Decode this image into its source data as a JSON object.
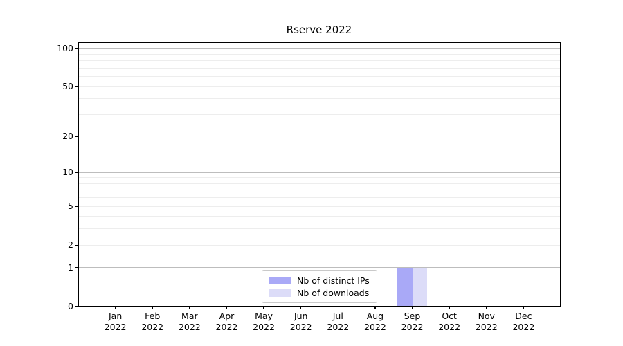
{
  "chart_data": {
    "type": "bar",
    "title": "Rserve 2022",
    "categories": [
      "Jan 2022",
      "Feb 2022",
      "Mar 2022",
      "Apr 2022",
      "May 2022",
      "Jun 2022",
      "Jul 2022",
      "Aug 2022",
      "Sep 2022",
      "Oct 2022",
      "Nov 2022",
      "Dec 2022"
    ],
    "series": [
      {
        "name": "Nb of distinct IPs",
        "color": "#a9a9f7",
        "values": [
          0,
          0,
          0,
          0,
          0,
          0,
          0,
          0,
          1,
          0,
          0,
          0
        ]
      },
      {
        "name": "Nb of downloads",
        "color": "#dcdcf8",
        "values": [
          0,
          0,
          0,
          0,
          0,
          0,
          0,
          0,
          1,
          0,
          0,
          0
        ]
      }
    ],
    "xlabel": "",
    "ylabel": "",
    "y_axis": {
      "scale": "log1p",
      "ylim": [
        0,
        112
      ],
      "tick_labels": [
        0,
        1,
        2,
        5,
        10,
        20,
        50,
        100
      ],
      "major_gridlines": [
        1,
        10,
        100
      ],
      "minor_gridlines": [
        2,
        3,
        4,
        5,
        6,
        7,
        8,
        9,
        20,
        30,
        40,
        50,
        60,
        70,
        80,
        90
      ]
    },
    "grid": "on",
    "legend_position": "lower center-left"
  },
  "colors": {
    "minor_grid": "#ededed",
    "major_grid": "#bdbdbd",
    "spine": "#000000",
    "text": "#000000",
    "legend_border": "#c9c9c9",
    "background": "#ffffff"
  }
}
